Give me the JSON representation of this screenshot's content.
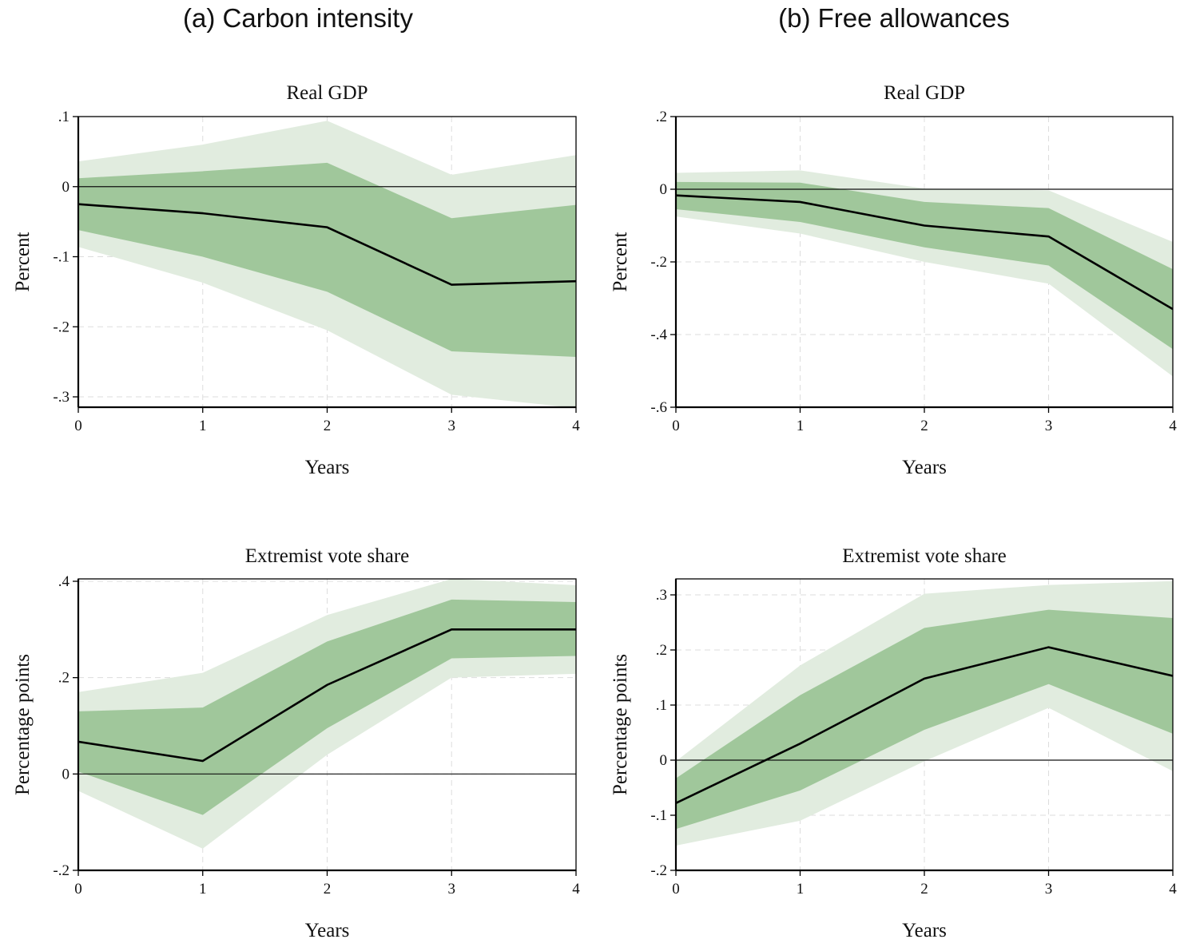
{
  "columns": [
    {
      "title": "(a) Carbon intensity"
    },
    {
      "title": "(b) Free allowances"
    }
  ],
  "colors": {
    "band_outer": "#e1ecdf",
    "band_inner": "#a0c79b",
    "line": "#000000",
    "grid": "#dddddd",
    "zero": "#111111"
  },
  "chart_data": [
    {
      "type": "line",
      "column": "(a) Carbon intensity",
      "title": "Real GDP",
      "xlabel": "Years",
      "ylabel": "Percent",
      "x": [
        0,
        1,
        2,
        3,
        4
      ],
      "xticks": [
        "0",
        "1",
        "2",
        "3",
        "4"
      ],
      "yticks": [
        0.1,
        0,
        -0.1,
        -0.2,
        -0.3
      ],
      "ytick_labels": [
        ".1",
        "0",
        "-.1",
        "-.2",
        "-.3"
      ],
      "ylim": [
        -0.316,
        0.1
      ],
      "series": [
        {
          "name": "estimate",
          "values": [
            -0.025,
            -0.038,
            -0.058,
            -0.14,
            -0.135
          ]
        },
        {
          "name": "inner band lower",
          "values": [
            -0.062,
            -0.1,
            -0.15,
            -0.235,
            -0.243
          ]
        },
        {
          "name": "inner band upper",
          "values": [
            0.012,
            0.022,
            0.034,
            -0.045,
            -0.026
          ]
        },
        {
          "name": "outer band lower",
          "values": [
            -0.086,
            -0.137,
            -0.205,
            -0.297,
            -0.316
          ]
        },
        {
          "name": "outer band upper",
          "values": [
            0.036,
            0.06,
            0.094,
            0.017,
            0.045
          ]
        }
      ]
    },
    {
      "type": "line",
      "column": "(b) Free allowances",
      "title": "Real GDP",
      "xlabel": "Years",
      "ylabel": "Percent",
      "x": [
        0,
        1,
        2,
        3,
        4
      ],
      "xticks": [
        "0",
        "1",
        "2",
        "3",
        "4"
      ],
      "yticks": [
        0.2,
        0,
        -0.2,
        -0.4,
        -0.6
      ],
      "ytick_labels": [
        ".2",
        "0",
        "-.2",
        "-.4",
        "-.6"
      ],
      "ylim": [
        -0.6,
        0.2
      ],
      "series": [
        {
          "name": "estimate",
          "values": [
            -0.017,
            -0.035,
            -0.1,
            -0.13,
            -0.33
          ]
        },
        {
          "name": "inner band lower",
          "values": [
            -0.055,
            -0.09,
            -0.16,
            -0.21,
            -0.44
          ]
        },
        {
          "name": "inner band upper",
          "values": [
            0.02,
            0.018,
            -0.035,
            -0.052,
            -0.22
          ]
        },
        {
          "name": "outer band lower",
          "values": [
            -0.075,
            -0.122,
            -0.2,
            -0.26,
            -0.515
          ]
        },
        {
          "name": "outer band upper",
          "values": [
            0.045,
            0.052,
            0.002,
            -0.003,
            -0.145
          ]
        }
      ]
    },
    {
      "type": "line",
      "column": "(a) Carbon intensity",
      "title": "Extremist vote share",
      "xlabel": "Years",
      "ylabel": "Percentage points",
      "x": [
        0,
        1,
        2,
        3,
        4
      ],
      "xticks": [
        "0",
        "1",
        "2",
        "3",
        "4"
      ],
      "yticks": [
        0.4,
        0.2,
        0,
        -0.2
      ],
      "ytick_labels": [
        ".4",
        ".2",
        "0",
        "-.2"
      ],
      "ylim": [
        -0.2,
        0.4
      ],
      "series": [
        {
          "name": "estimate",
          "values": [
            0.067,
            0.027,
            0.185,
            0.3,
            0.3
          ]
        },
        {
          "name": "inner band lower",
          "values": [
            0.005,
            -0.085,
            0.095,
            0.24,
            0.245
          ]
        },
        {
          "name": "inner band upper",
          "values": [
            0.13,
            0.138,
            0.275,
            0.362,
            0.357
          ]
        },
        {
          "name": "outer band lower",
          "values": [
            -0.035,
            -0.155,
            0.04,
            0.2,
            0.208
          ]
        },
        {
          "name": "outer band upper",
          "values": [
            0.17,
            0.21,
            0.33,
            0.405,
            0.392
          ]
        }
      ]
    },
    {
      "type": "line",
      "column": "(b) Free allowances",
      "title": "Extremist vote share",
      "xlabel": "Years",
      "ylabel": "Percentage points",
      "x": [
        0,
        1,
        2,
        3,
        4
      ],
      "xticks": [
        "0",
        "1",
        "2",
        "3",
        "4"
      ],
      "yticks": [
        0.3,
        0.2,
        0.1,
        0,
        -0.1,
        -0.2
      ],
      "ytick_labels": [
        ".3",
        ".2",
        ".1",
        "0",
        "-.1",
        "-.2"
      ],
      "ylim": [
        -0.2,
        0.325
      ],
      "series": [
        {
          "name": "estimate",
          "values": [
            -0.078,
            0.03,
            0.148,
            0.205,
            0.153
          ]
        },
        {
          "name": "inner band lower",
          "values": [
            -0.125,
            -0.055,
            0.055,
            0.138,
            0.048
          ]
        },
        {
          "name": "inner band upper",
          "values": [
            -0.033,
            0.118,
            0.24,
            0.273,
            0.258
          ]
        },
        {
          "name": "outer band lower",
          "values": [
            -0.155,
            -0.11,
            -0.002,
            0.095,
            -0.02
          ]
        },
        {
          "name": "outer band upper",
          "values": [
            -0.002,
            0.172,
            0.302,
            0.318,
            0.325
          ]
        }
      ]
    }
  ]
}
